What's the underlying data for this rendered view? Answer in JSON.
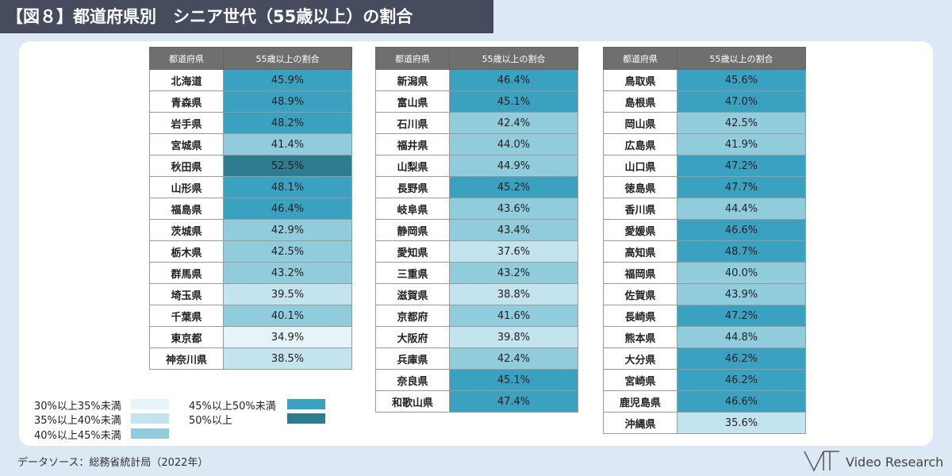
{
  "title": "【図８】都道府県別　シニア世代（55歳以上）の割合",
  "headers": {
    "name": "都道府県",
    "value": "55歳以上の割合"
  },
  "legend": [
    {
      "label": "30%以上35%未満",
      "color": "#e6f3f8"
    },
    {
      "label": "35%以上40%未満",
      "color": "#c3e3ee"
    },
    {
      "label": "40%以上45%未満",
      "color": "#91ccdc"
    },
    {
      "label": "45%以上50%未満",
      "color": "#3aa2c0"
    },
    {
      "label": "50%以上",
      "color": "#2f7c8f"
    }
  ],
  "source": "データソース：総務省統計局（2022年）",
  "logo": {
    "text": "Video Research"
  },
  "chart_data": {
    "type": "table",
    "unit": "%",
    "columns": [
      [
        {
          "name": "北海道",
          "value": 45.9,
          "label": "45.9%"
        },
        {
          "name": "青森県",
          "value": 48.9,
          "label": "48.9%"
        },
        {
          "name": "岩手県",
          "value": 48.2,
          "label": "48.2%"
        },
        {
          "name": "宮城県",
          "value": 41.4,
          "label": "41.4%"
        },
        {
          "name": "秋田県",
          "value": 52.5,
          "label": "52.5%"
        },
        {
          "name": "山形県",
          "value": 48.1,
          "label": "48.1%"
        },
        {
          "name": "福島県",
          "value": 46.4,
          "label": "46.4%"
        },
        {
          "name": "茨城県",
          "value": 42.9,
          "label": "42.9%"
        },
        {
          "name": "栃木県",
          "value": 42.5,
          "label": "42.5%"
        },
        {
          "name": "群馬県",
          "value": 43.2,
          "label": "43.2%"
        },
        {
          "name": "埼玉県",
          "value": 39.5,
          "label": "39.5%"
        },
        {
          "name": "千葉県",
          "value": 40.1,
          "label": "40.1%"
        },
        {
          "name": "東京都",
          "value": 34.9,
          "label": "34.9%"
        },
        {
          "name": "神奈川県",
          "value": 38.5,
          "label": "38.5%"
        }
      ],
      [
        {
          "name": "新潟県",
          "value": 46.4,
          "label": "46.4%"
        },
        {
          "name": "富山県",
          "value": 45.1,
          "label": "45.1%"
        },
        {
          "name": "石川県",
          "value": 42.4,
          "label": "42.4%"
        },
        {
          "name": "福井県",
          "value": 44.0,
          "label": "44.0%"
        },
        {
          "name": "山梨県",
          "value": 44.9,
          "label": "44.9%"
        },
        {
          "name": "長野県",
          "value": 45.2,
          "label": "45.2%"
        },
        {
          "name": "岐阜県",
          "value": 43.6,
          "label": "43.6%"
        },
        {
          "name": "静岡県",
          "value": 43.4,
          "label": "43.4%"
        },
        {
          "name": "愛知県",
          "value": 37.6,
          "label": "37.6%"
        },
        {
          "name": "三重県",
          "value": 43.2,
          "label": "43.2%"
        },
        {
          "name": "滋賀県",
          "value": 38.8,
          "label": "38.8%"
        },
        {
          "name": "京都府",
          "value": 41.6,
          "label": "41.6%"
        },
        {
          "name": "大阪府",
          "value": 39.8,
          "label": "39.8%"
        },
        {
          "name": "兵庫県",
          "value": 42.4,
          "label": "42.4%"
        },
        {
          "name": "奈良県",
          "value": 45.1,
          "label": "45.1%"
        },
        {
          "name": "和歌山県",
          "value": 47.4,
          "label": "47.4%"
        }
      ],
      [
        {
          "name": "鳥取県",
          "value": 45.6,
          "label": "45.6%"
        },
        {
          "name": "島根県",
          "value": 47.0,
          "label": "47.0%"
        },
        {
          "name": "岡山県",
          "value": 42.5,
          "label": "42.5%"
        },
        {
          "name": "広島県",
          "value": 41.9,
          "label": "41.9%"
        },
        {
          "name": "山口県",
          "value": 47.2,
          "label": "47.2%"
        },
        {
          "name": "徳島県",
          "value": 47.7,
          "label": "47.7%"
        },
        {
          "name": "香川県",
          "value": 44.4,
          "label": "44.4%"
        },
        {
          "name": "愛媛県",
          "value": 46.6,
          "label": "46.6%"
        },
        {
          "name": "高知県",
          "value": 48.7,
          "label": "48.7%"
        },
        {
          "name": "福岡県",
          "value": 40.0,
          "label": "40.0%"
        },
        {
          "name": "佐賀県",
          "value": 43.9,
          "label": "43.9%"
        },
        {
          "name": "長崎県",
          "value": 47.2,
          "label": "47.2%"
        },
        {
          "name": "熊本県",
          "value": 44.8,
          "label": "44.8%"
        },
        {
          "name": "大分県",
          "value": 46.2,
          "label": "46.2%"
        },
        {
          "name": "宮崎県",
          "value": 46.2,
          "label": "46.2%"
        },
        {
          "name": "鹿児島県",
          "value": 46.6,
          "label": "46.6%"
        },
        {
          "name": "沖縄県",
          "value": 35.6,
          "label": "35.6%"
        }
      ]
    ]
  }
}
